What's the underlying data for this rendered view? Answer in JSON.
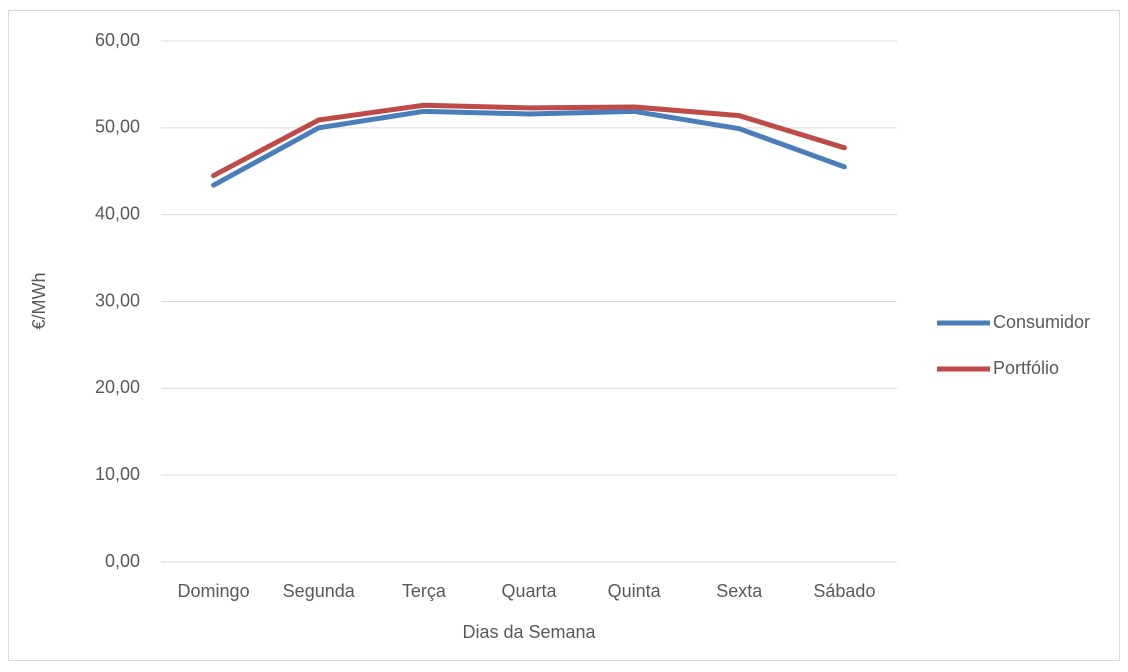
{
  "chart_data": {
    "type": "line",
    "y_label": "€/MWh",
    "x_label": "Dias da Semana",
    "categories": [
      "Domingo",
      "Segunda",
      "Terça",
      "Quarta",
      "Quinta",
      "Sexta",
      "Sábado"
    ],
    "series": [
      {
        "name": "Consumidor",
        "color": "#4a7ebb",
        "values": [
          43.4,
          50.0,
          51.9,
          51.6,
          51.9,
          49.9,
          45.5
        ]
      },
      {
        "name": "Portfólio",
        "color": "#be4b48",
        "values": [
          44.5,
          50.9,
          52.6,
          52.3,
          52.4,
          51.4,
          47.7
        ]
      }
    ],
    "ylim": [
      0,
      60
    ],
    "yticks": [
      {
        "value": 0,
        "label": "0,00"
      },
      {
        "value": 10,
        "label": "10,00"
      },
      {
        "value": 20,
        "label": "20,00"
      },
      {
        "value": 30,
        "label": "30,00"
      },
      {
        "value": 40,
        "label": "40,00"
      },
      {
        "value": 50,
        "label": "50,00"
      },
      {
        "value": 60,
        "label": "60,00"
      }
    ],
    "grid": true,
    "legend": "right"
  }
}
